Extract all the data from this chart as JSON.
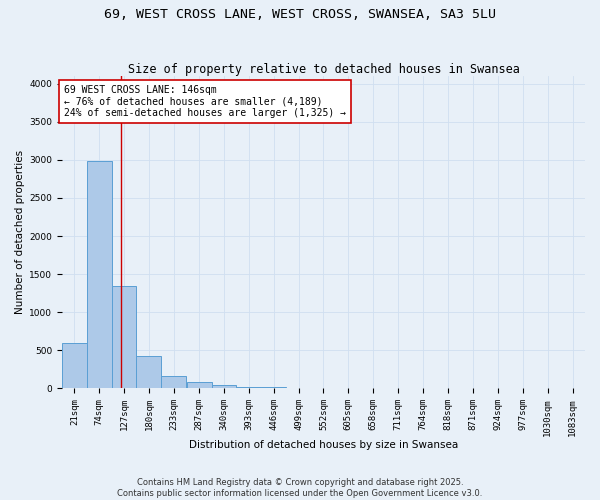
{
  "title": "69, WEST CROSS LANE, WEST CROSS, SWANSEA, SA3 5LU",
  "subtitle": "Size of property relative to detached houses in Swansea",
  "xlabel": "Distribution of detached houses by size in Swansea",
  "ylabel": "Number of detached properties",
  "bin_labels": [
    "21sqm",
    "74sqm",
    "127sqm",
    "180sqm",
    "233sqm",
    "287sqm",
    "340sqm",
    "393sqm",
    "446sqm",
    "499sqm",
    "552sqm",
    "605sqm",
    "658sqm",
    "711sqm",
    "764sqm",
    "818sqm",
    "871sqm",
    "924sqm",
    "977sqm",
    "1030sqm",
    "1083sqm"
  ],
  "bin_edges": [
    21,
    74,
    127,
    180,
    233,
    287,
    340,
    393,
    446,
    499,
    552,
    605,
    658,
    711,
    764,
    818,
    871,
    924,
    977,
    1030,
    1083
  ],
  "bar_heights": [
    600,
    2980,
    1340,
    430,
    165,
    80,
    45,
    25,
    20,
    10,
    0,
    0,
    0,
    0,
    0,
    0,
    0,
    0,
    0,
    0
  ],
  "bar_color": "#adc9e8",
  "bar_edge_color": "#5a9fd4",
  "grid_color": "#d0dff0",
  "background_color": "#e8f0f8",
  "vline_x": 146,
  "vline_color": "#cc0000",
  "annotation_text": "69 WEST CROSS LANE: 146sqm\n← 76% of detached houses are smaller (4,189)\n24% of semi-detached houses are larger (1,325) →",
  "annotation_box_color": "#cc0000",
  "ylim": [
    0,
    4100
  ],
  "yticks": [
    0,
    500,
    1000,
    1500,
    2000,
    2500,
    3000,
    3500,
    4000
  ],
  "footer_line1": "Contains HM Land Registry data © Crown copyright and database right 2025.",
  "footer_line2": "Contains public sector information licensed under the Open Government Licence v3.0.",
  "title_fontsize": 9.5,
  "subtitle_fontsize": 8.5,
  "axis_label_fontsize": 7.5,
  "tick_fontsize": 6.5,
  "annotation_fontsize": 7,
  "footer_fontsize": 6
}
